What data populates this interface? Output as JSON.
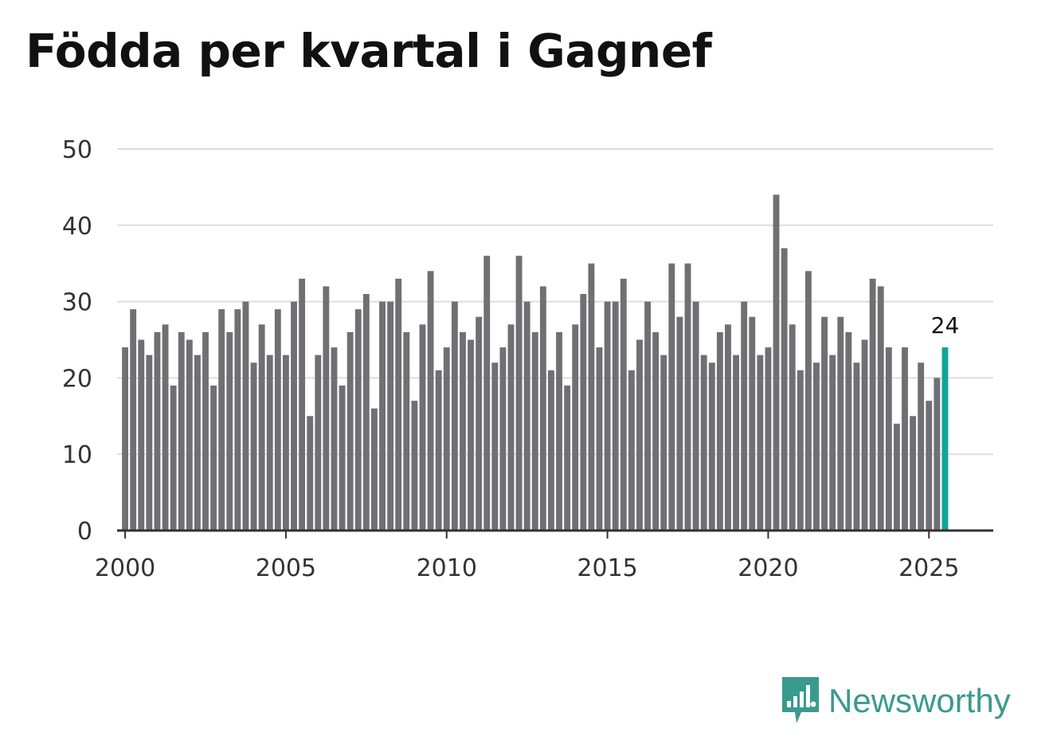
{
  "title": "Födda per kvartal i Gagnef",
  "brand": "Newsworthy",
  "colors": {
    "bar": "#707074",
    "highlight": "#13a39a",
    "grid": "#dddddd",
    "axis": "#333333",
    "text": "#333333",
    "brand": "#3a9a8e"
  },
  "chart_data": {
    "type": "bar",
    "title": "Födda per kvartal i Gagnef",
    "xlabel": "",
    "ylabel": "",
    "ylim": [
      0,
      50
    ],
    "xlim": [
      1999.75,
      2027.0
    ],
    "y_ticks": [
      0,
      10,
      20,
      30,
      40,
      50
    ],
    "x_ticks": [
      2000,
      2005,
      2010,
      2015,
      2020,
      2025
    ],
    "start_year": 2000,
    "periods_per_year": 4,
    "values": [
      24,
      29,
      25,
      23,
      26,
      27,
      19,
      26,
      25,
      23,
      26,
      19,
      29,
      26,
      29,
      30,
      22,
      27,
      23,
      29,
      23,
      30,
      33,
      15,
      23,
      32,
      24,
      19,
      26,
      29,
      31,
      16,
      30,
      30,
      33,
      26,
      17,
      27,
      34,
      21,
      24,
      30,
      26,
      25,
      28,
      36,
      22,
      24,
      27,
      36,
      30,
      26,
      32,
      21,
      26,
      19,
      27,
      31,
      35,
      24,
      30,
      30,
      33,
      21,
      25,
      30,
      26,
      23,
      35,
      28,
      35,
      30,
      23,
      22,
      26,
      27,
      23,
      30,
      28,
      23,
      24,
      44,
      37,
      27,
      21,
      34,
      22,
      28,
      23,
      28,
      26,
      22,
      25,
      33,
      32,
      24,
      14,
      24,
      15,
      22,
      17,
      20,
      24
    ],
    "highlight_last": true,
    "last_label": "24"
  }
}
